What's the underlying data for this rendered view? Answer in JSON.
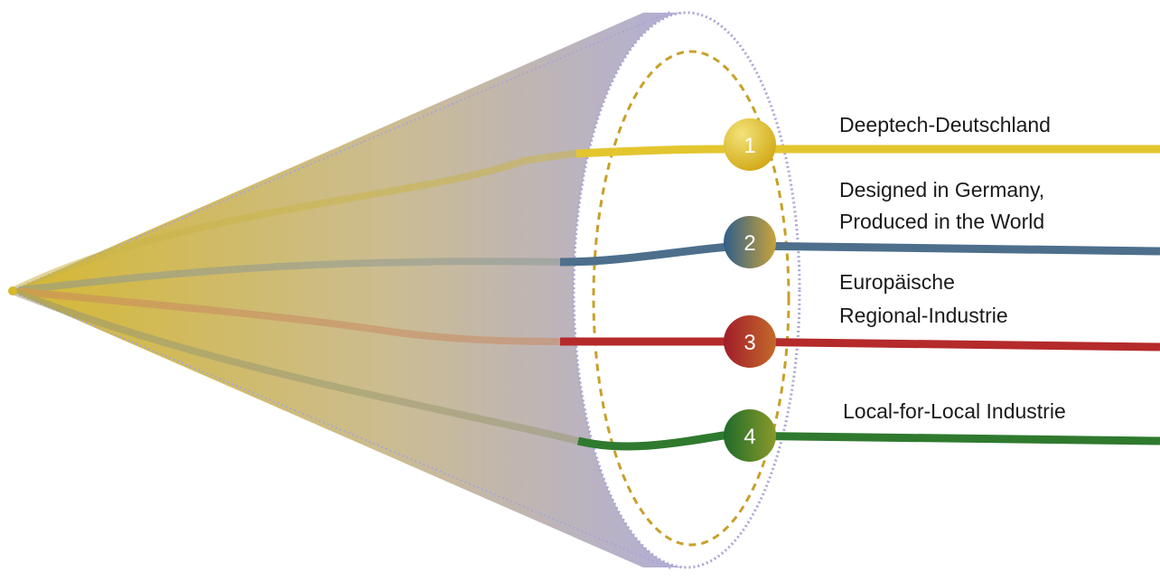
{
  "scenarios": [
    {
      "number": "1",
      "label_lines": [
        "Deeptech-Deutschland"
      ],
      "color": "#e3c62e",
      "color_dark": "#cfa50f",
      "color_light": "#f3e37a"
    },
    {
      "number": "2",
      "label_lines": [
        "Designed in Germany,",
        "Produced in the World"
      ],
      "color": "#4d6f8c",
      "color_dark": "#2f5e8a",
      "color_light": "#c9a33a"
    },
    {
      "number": "3",
      "label_lines": [
        "Europäische",
        "Regional-Industrie"
      ],
      "color": "#b52a2a",
      "color_dark": "#a01c2a",
      "color_light": "#c46a2a"
    },
    {
      "number": "4",
      "label_lines": [
        "Local-for-Local Industrie"
      ],
      "color": "#2f7a2f",
      "color_dark": "#1f6b2a",
      "color_light": "#8a9a2a"
    }
  ],
  "colors": {
    "cone_start": "#d6b830",
    "cone_end": "#aeaad6",
    "ellipse_outer": "#a9a6d4",
    "ellipse_inner_dashed": "#c8a02a",
    "origin_point": "#d9b92a"
  }
}
